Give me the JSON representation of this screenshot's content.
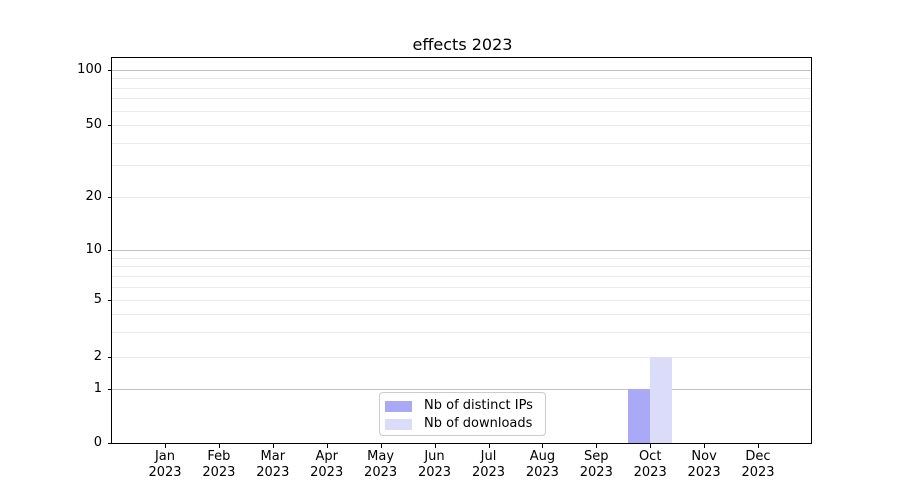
{
  "chart_data": {
    "type": "bar",
    "title": "effects 2023",
    "x_axis": {
      "months": [
        "Jan",
        "Feb",
        "Mar",
        "Apr",
        "May",
        "Jun",
        "Jul",
        "Aug",
        "Sep",
        "Oct",
        "Nov",
        "Dec"
      ],
      "year": "2023"
    },
    "series": [
      {
        "name": "Nb of distinct IPs",
        "color": "#a9a9f7",
        "values": [
          0,
          0,
          0,
          0,
          0,
          0,
          0,
          0,
          0,
          1,
          0,
          0
        ]
      },
      {
        "name": "Nb of downloads",
        "color": "#dbdbfa",
        "values": [
          0,
          0,
          0,
          0,
          0,
          0,
          0,
          0,
          0,
          2,
          0,
          0
        ]
      }
    ],
    "y_axis": {
      "scale": "symlog",
      "tick_values": [
        0,
        1,
        2,
        5,
        10,
        20,
        50,
        100
      ],
      "major_gridlines": [
        1,
        10,
        100
      ],
      "minor_gridlines": [
        2,
        3,
        4,
        5,
        6,
        7,
        8,
        9,
        20,
        30,
        40,
        50,
        60,
        70,
        80,
        90
      ],
      "scale_anchors": [
        [
          0,
          0.0
        ],
        [
          1,
          0.1403
        ],
        [
          2,
          0.2234
        ],
        [
          5,
          0.3714
        ],
        [
          10,
          0.5013
        ],
        [
          20,
          0.639
        ],
        [
          50,
          0.826
        ],
        [
          100,
          0.9688
        ]
      ],
      "ylim": [
        0,
        115
      ]
    },
    "legend_position": "lower center",
    "grid": true
  },
  "colors": {
    "bar_distinct_ips": "#a9a9f7",
    "bar_downloads": "#dbdbfa",
    "grid_major": "#c3c3c3",
    "grid_minor": "#ebebeb",
    "spine": "#000000",
    "legend_border": "#cccccc",
    "text": "#000000"
  }
}
